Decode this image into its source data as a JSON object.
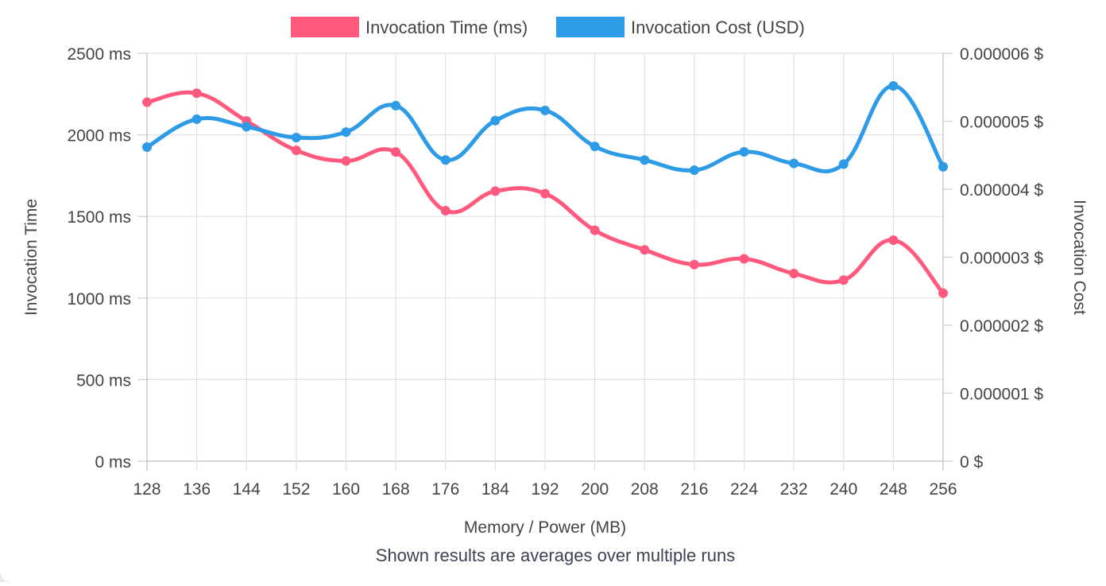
{
  "footnote": "Shown results are averages over multiple runs",
  "chart_data": {
    "type": "line",
    "x_values": [
      128,
      136,
      144,
      152,
      160,
      168,
      176,
      184,
      192,
      200,
      208,
      216,
      224,
      232,
      240,
      248,
      256
    ],
    "categories": [
      "128",
      "136",
      "144",
      "152",
      "160",
      "168",
      "176",
      "184",
      "192",
      "200",
      "208",
      "216",
      "224",
      "232",
      "240",
      "248",
      "256"
    ],
    "xlabel": "Memory / Power (MB)",
    "y_left": {
      "label": "Invocation Time",
      "range": [
        0,
        2500
      ],
      "ticks": [
        0,
        500,
        1000,
        1500,
        2000,
        2500
      ],
      "tick_labels": [
        "0 ms",
        "500 ms",
        "1000 ms",
        "1500 ms",
        "2000 ms",
        "2500 ms"
      ]
    },
    "y_right": {
      "label": "Invocation Cost",
      "range": [
        0,
        6e-06
      ],
      "ticks": [
        0,
        1e-06,
        2e-06,
        3e-06,
        4e-06,
        5e-06,
        6e-06
      ],
      "tick_labels": [
        "0 $",
        "0.000001 $",
        "0.000002 $",
        "0.000003 $",
        "0.000004 $",
        "0.000005 $",
        "0.000006 $"
      ]
    },
    "grid": true,
    "legend_position": "top",
    "series": [
      {
        "name": "Invocation Time (ms)",
        "axis": "left",
        "color": "#ff5a7e",
        "values": [
          2200,
          2255,
          2085,
          1905,
          1840,
          1895,
          1535,
          1655,
          1640,
          1415,
          1295,
          1205,
          1240,
          1150,
          1110,
          1355,
          1030
        ]
      },
      {
        "name": "Invocation Cost (USD)",
        "axis": "right",
        "color": "#2d9be6",
        "values": [
          4.62e-06,
          5.03e-06,
          4.92e-06,
          4.76e-06,
          4.84e-06,
          5.23e-06,
          4.43e-06,
          5.01e-06,
          5.16e-06,
          4.63e-06,
          4.43e-06,
          4.28e-06,
          4.55e-06,
          4.38e-06,
          4.37e-06,
          5.52e-06,
          4.33e-06
        ]
      }
    ]
  }
}
